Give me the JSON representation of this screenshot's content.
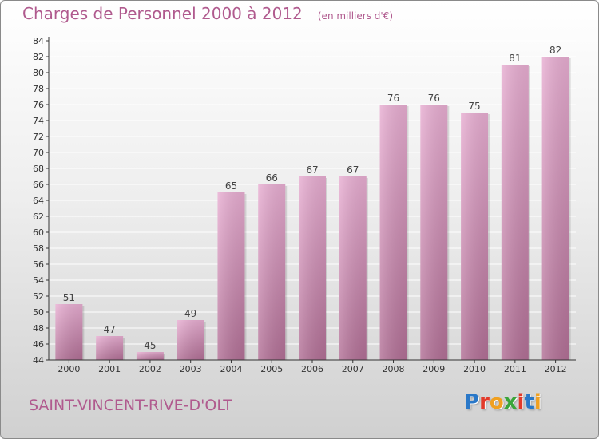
{
  "title": "Charges de Personnel 2000 à 2012",
  "subtitle": "(en milliers d'€)",
  "town": "SAINT-VINCENT-RIVE-D'OLT",
  "logo": {
    "letters": [
      "P",
      "r",
      "o",
      "x",
      "i",
      "t",
      "i"
    ],
    "colors": [
      "#2a78c8",
      "#e23a2a",
      "#f0a020",
      "#3aa53a",
      "#e23a2a",
      "#2a78c8",
      "#f0a020"
    ]
  },
  "colors": {
    "bar_light": "#e8aed2",
    "bar_dark": "#b27096",
    "text": "#b05a8e",
    "grid": "#ffffff",
    "axis": "#333333"
  },
  "chart_data": {
    "type": "bar",
    "title": "Charges de Personnel 2000 à 2012",
    "subtitle": "(en milliers d'€)",
    "categories": [
      "2000",
      "2001",
      "2002",
      "2003",
      "2004",
      "2005",
      "2006",
      "2007",
      "2008",
      "2009",
      "2010",
      "2011",
      "2012"
    ],
    "values": [
      51,
      47,
      45,
      49,
      65,
      66,
      67,
      67,
      76,
      76,
      75,
      81,
      82
    ],
    "ylim": [
      44,
      84
    ],
    "yticks": [
      44,
      46,
      48,
      50,
      52,
      54,
      56,
      58,
      60,
      62,
      64,
      66,
      68,
      70,
      72,
      74,
      76,
      78,
      80,
      82,
      84
    ],
    "grid": true,
    "legend": "none",
    "data_labels": true
  }
}
